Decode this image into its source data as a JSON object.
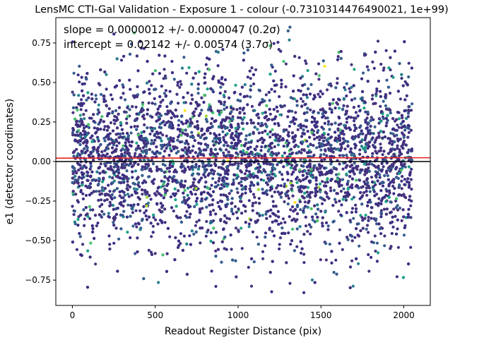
{
  "chart_data": {
    "type": "scatter",
    "title": "LensMC CTI-Gal Validation - Exposure 1 - colour (-0.7310314476490021, 1e+99)",
    "xlabel": "Readout Register Distance (pix)",
    "ylabel": "e1 (detector coordinates)",
    "xlim": [
      -100,
      2160
    ],
    "ylim": [
      -0.91,
      0.91
    ],
    "x_ticks": [
      0,
      500,
      1000,
      1500,
      2000
    ],
    "y_ticks": [
      -0.75,
      -0.5,
      -0.25,
      0.0,
      0.25,
      0.5,
      0.75
    ],
    "x_tick_labels": [
      "0",
      "500",
      "1000",
      "1500",
      "2000"
    ],
    "y_tick_labels": [
      "−0.75",
      "−0.50",
      "−0.25",
      "0.00",
      "0.25",
      "0.50",
      "0.75"
    ],
    "annotations": [
      "slope = 0.0000012 +/- 0.0000047 (0.2σ)",
      "intercept = 0.02142 +/- 0.00574 (3.7σ)"
    ],
    "fit_line": {
      "slope": 1.2e-06,
      "intercept": 0.02142,
      "color": "#e8211c"
    },
    "zero_line": {
      "y": 0.0,
      "color": "#000000"
    },
    "points": {
      "count": 5000,
      "x_range": [
        0,
        2050
      ],
      "y_spread_sd": 0.27,
      "marker_color_scale": "viridis",
      "dominant_color": "#3b2f82"
    },
    "grid": false,
    "legend": "none"
  }
}
